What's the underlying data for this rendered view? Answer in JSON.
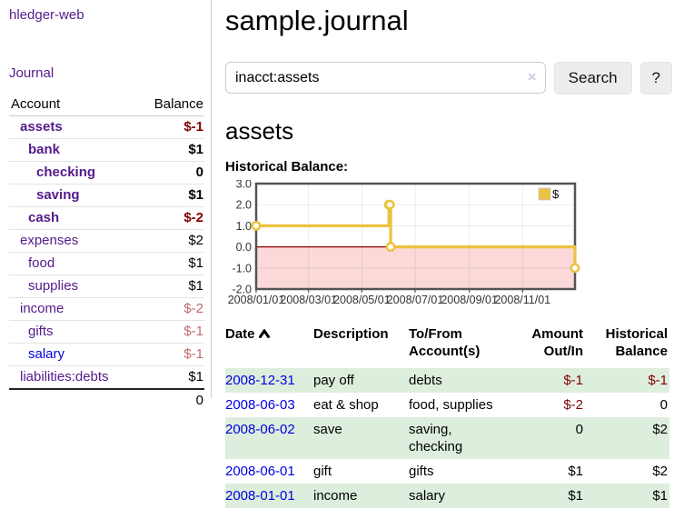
{
  "app_title": "hledger-web",
  "sidebar": {
    "journal_link": "Journal",
    "accounts_table": {
      "headers": {
        "account": "Account",
        "balance": "Balance"
      },
      "rows": [
        {
          "name": "assets",
          "level": 1,
          "bold": true,
          "balance": "$-1",
          "balance_style": "neg"
        },
        {
          "name": "bank",
          "level": 2,
          "bold": true,
          "balance": "$1",
          "balance_style": "pos"
        },
        {
          "name": "checking",
          "level": 3,
          "bold": true,
          "balance": "0",
          "balance_style": "pos"
        },
        {
          "name": "saving",
          "level": 3,
          "bold": true,
          "balance": "$1",
          "balance_style": "pos"
        },
        {
          "name": "cash",
          "level": 2,
          "bold": true,
          "balance": "$-2",
          "balance_style": "neg"
        },
        {
          "name": "expenses",
          "level": 1,
          "bold": false,
          "balance": "$2",
          "balance_style": "pos"
        },
        {
          "name": "food",
          "level": 2,
          "bold": false,
          "balance": "$1",
          "balance_style": "pos"
        },
        {
          "name": "supplies",
          "level": 2,
          "bold": false,
          "balance": "$1",
          "balance_style": "pos"
        },
        {
          "name": "income",
          "level": 1,
          "bold": false,
          "balance": "$-2",
          "balance_style": "neg-faded"
        },
        {
          "name": "gifts",
          "level": 2,
          "bold": false,
          "balance": "$-1",
          "balance_style": "neg-faded"
        },
        {
          "name": "salary",
          "level": 2,
          "bold": false,
          "link_style": "unvisited",
          "balance": "$-1",
          "balance_style": "neg-faded"
        },
        {
          "name": "liabilities:debts",
          "level": 1,
          "bold": false,
          "balance": "$1",
          "balance_style": "pos"
        }
      ],
      "total": "0"
    }
  },
  "main": {
    "title": "sample.journal",
    "search": {
      "value": "inacct:assets",
      "clear_icon": "×",
      "search_button": "Search",
      "help_button": "?"
    },
    "account_heading": "assets",
    "chart_title": "Historical Balance:",
    "register": {
      "headers": [
        "Date",
        "Description",
        "To/From\nAccount(s)",
        "Amount\nOut/In",
        "Historical\nBalance"
      ],
      "rows": [
        {
          "date": "2008-12-31",
          "description": "pay off",
          "accounts": "debts",
          "amount": "$-1",
          "amount_negative": true,
          "balance": "$-1",
          "balance_negative": true
        },
        {
          "date": "2008-06-03",
          "description": "eat & shop",
          "accounts": "food, supplies",
          "amount": "$-2",
          "amount_negative": true,
          "balance": "0",
          "balance_negative": false
        },
        {
          "date": "2008-06-02",
          "description": "save",
          "accounts": "saving, checking",
          "amount": "0",
          "amount_negative": false,
          "balance": "$2",
          "balance_negative": false
        },
        {
          "date": "2008-06-01",
          "description": "gift",
          "accounts": "gifts",
          "amount": "$1",
          "amount_negative": false,
          "balance": "$2",
          "balance_negative": false
        },
        {
          "date": "2008-01-01",
          "description": "income",
          "accounts": "salary",
          "amount": "$1",
          "amount_negative": false,
          "balance": "$1",
          "balance_negative": false
        }
      ]
    }
  },
  "chart_data": {
    "type": "line",
    "title": "Historical Balance:",
    "step": true,
    "series": [
      {
        "name": "$",
        "color": "#edc240",
        "points": [
          {
            "date": "2008-01-01",
            "day": 0,
            "value": 1
          },
          {
            "date": "2008-06-01",
            "day": 152,
            "value": 2
          },
          {
            "date": "2008-06-02",
            "day": 153,
            "value": 2
          },
          {
            "date": "2008-06-03",
            "day": 154,
            "value": 0
          },
          {
            "date": "2008-12-31",
            "day": 365,
            "value": -1
          }
        ]
      }
    ],
    "xticks": [
      {
        "day": 0,
        "label": "2008/01/01"
      },
      {
        "day": 60,
        "label": "2008/03/01"
      },
      {
        "day": 121,
        "label": "2008/05/01"
      },
      {
        "day": 182,
        "label": "2008/07/01"
      },
      {
        "day": 244,
        "label": "2008/09/01"
      },
      {
        "day": 305,
        "label": "2008/11/01"
      }
    ],
    "yticks": [
      {
        "value": 3,
        "label": "3.0"
      },
      {
        "value": 2,
        "label": "2.0"
      },
      {
        "value": 1,
        "label": "1.0"
      },
      {
        "value": 0,
        "label": "0.0"
      },
      {
        "value": -1,
        "label": "-1.0"
      },
      {
        "value": -2,
        "label": "-2.0"
      }
    ],
    "ylim": [
      -2,
      3
    ],
    "xlim_days": [
      0,
      365
    ],
    "legend": {
      "label": "$",
      "position": "top-right"
    },
    "grid": true,
    "negative_region_fill": "#fbd9d9",
    "zero_line_color": "#8b0000"
  },
  "colors": {
    "visited_link": "#551a8b",
    "unvisited_link": "#0000e0",
    "negative": "#7f0000",
    "negative_faded": "#bf6a6a",
    "row_highlight": "#ddeedd",
    "chart_line": "#edc240",
    "chart_border": "#545454"
  }
}
